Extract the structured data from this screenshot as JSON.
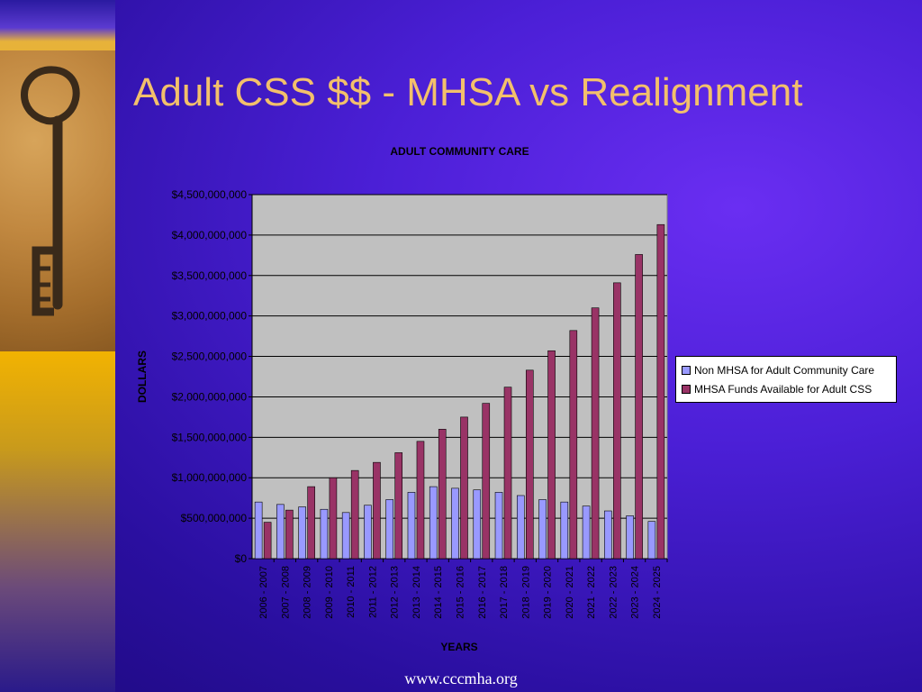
{
  "slide": {
    "title": "Adult CSS $$ -  MHSA vs Realignment",
    "footer": "www.cccmha.org"
  },
  "colors": {
    "series1": "#9999ff",
    "series2": "#993366",
    "plot_bg": "#c0c0c0"
  },
  "chart_data": {
    "type": "bar",
    "title": "ADULT COMMUNITY CARE",
    "xlabel": "YEARS",
    "ylabel": "DOLLARS",
    "ylim": [
      0,
      4500000000
    ],
    "yticks": [
      0,
      500000000,
      1000000000,
      1500000000,
      2000000000,
      2500000000,
      3000000000,
      3500000000,
      4000000000,
      4500000000
    ],
    "ytick_labels": [
      "$0",
      "$500,000,000",
      "$1,000,000,000",
      "$1,500,000,000",
      "$2,000,000,000",
      "$2,500,000,000",
      "$3,000,000,000",
      "$3,500,000,000",
      "$4,000,000,000",
      "$4,500,000,000"
    ],
    "grid": true,
    "legend_position": "right",
    "categories": [
      "2006 - 2007",
      "2007 - 2008",
      "2008 - 2009",
      "2009 - 2010",
      "2010 - 2011",
      "2011 - 2012",
      "2012 - 2013",
      "2013 - 2014",
      "2014 - 2015",
      "2015 - 2016",
      "2016 - 2017",
      "2017 - 2018",
      "2018 - 2019",
      "2019 - 2020",
      "2020 - 2021",
      "2021 - 2022",
      "2022 - 2023",
      "2023 - 2024",
      "2024 - 2025"
    ],
    "series": [
      {
        "name": "Non MHSA for Adult Community Care",
        "values": [
          700000000,
          670000000,
          640000000,
          610000000,
          570000000,
          660000000,
          730000000,
          820000000,
          890000000,
          870000000,
          850000000,
          820000000,
          780000000,
          730000000,
          700000000,
          650000000,
          590000000,
          530000000,
          460000000
        ]
      },
      {
        "name": "MHSA Funds Available for Adult CSS",
        "values": [
          450000000,
          600000000,
          890000000,
          1000000000,
          1090000000,
          1190000000,
          1310000000,
          1450000000,
          1600000000,
          1750000000,
          1920000000,
          2120000000,
          2330000000,
          2570000000,
          2820000000,
          3100000000,
          3410000000,
          3760000000,
          4130000000
        ]
      }
    ]
  }
}
